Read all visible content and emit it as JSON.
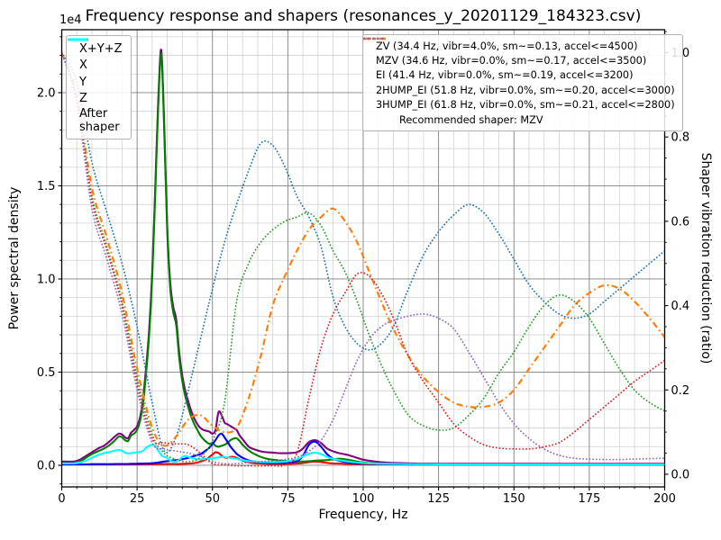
{
  "title": "Frequency response and shapers (resonances_y_20201129_184323.csv)",
  "axes": {
    "x": {
      "label": "Frequency, Hz",
      "min": 0,
      "max": 200,
      "major_ticks": [
        0,
        25,
        50,
        75,
        100,
        125,
        150,
        175,
        200
      ],
      "minor_step": 5
    },
    "y_left": {
      "label": "Power spectral density",
      "offset_label": "1e4",
      "major_ticks": [
        0.0,
        0.5,
        1.0,
        1.5,
        2.0
      ],
      "minor_step": 0.1,
      "lim": [
        -0.116,
        2.338
      ]
    },
    "y_right": {
      "label": "Shaper vibration reduction (ratio)",
      "major_ticks": [
        0.0,
        0.2,
        0.4,
        0.6,
        0.8,
        1.0
      ],
      "minor_step": 0.05,
      "lim": [
        -0.03,
        1.0545
      ]
    }
  },
  "colors": {
    "xyz": "#800080",
    "x": "#ff0000",
    "y": "#008000",
    "z": "#0000ff",
    "after": "#00ffff",
    "zv": "#1f77b4",
    "mzv": "#ff7f0e",
    "ei": "#2ca02c",
    "hump2": "#d62728",
    "hump3": "#9467bd",
    "grid_major": "#808080",
    "grid_minor": "#d3d3d3",
    "spine": "#000000"
  },
  "legend_left": {
    "items": [
      {
        "label": "X+Y+Z",
        "color": "#800080",
        "style": "solid"
      },
      {
        "label": "X",
        "color": "#ff0000",
        "style": "solid"
      },
      {
        "label": "Y",
        "color": "#008000",
        "style": "solid"
      },
      {
        "label": "Z",
        "color": "#0000ff",
        "style": "solid"
      },
      {
        "label": "After\nshaper",
        "color": "#00ffff",
        "style": "solid"
      }
    ]
  },
  "legend_right": {
    "items": [
      {
        "label": "ZV (34.4 Hz, vibr=4.0%, sm~=0.13, accel<=4500)",
        "color": "#1f77b4",
        "style": "dotted"
      },
      {
        "label": "MZV (34.6 Hz, vibr=0.0%, sm~=0.17, accel<=3500)",
        "color": "#ff7f0e",
        "style": "dashdot"
      },
      {
        "label": "EI (41.4 Hz, vibr=0.0%, sm~=0.19, accel<=3200)",
        "color": "#2ca02c",
        "style": "dotted"
      },
      {
        "label": "2HUMP_EI (51.8 Hz, vibr=0.0%, sm~=0.20, accel<=3000)",
        "color": "#d62728",
        "style": "dotted"
      },
      {
        "label": "3HUMP_EI (61.8 Hz, vibr=0.0%, sm~=0.21, accel<=2800)",
        "color": "#9467bd",
        "style": "dotted"
      }
    ],
    "note": "Recommended shaper: MZV"
  },
  "chart_data": {
    "type": "line",
    "title": "Frequency response and shapers (resonances_y_20201129_184323.csv)",
    "xlabel": "Frequency, Hz",
    "ylabel_left": "Power spectral density (1e4)",
    "ylabel_right": "Shaper vibration reduction (ratio)",
    "xlim": [
      0,
      200
    ],
    "ylim_left": [
      -0.116,
      2.338
    ],
    "ylim_right": [
      -0.03,
      1.0545
    ],
    "grid": "both",
    "psd_x": [
      0,
      4,
      6,
      8,
      10,
      12,
      14,
      16,
      18,
      19,
      20,
      21,
      22,
      23,
      24,
      25,
      26,
      27,
      28,
      29,
      30,
      31,
      32,
      33,
      34,
      35,
      36,
      37,
      38,
      39,
      40,
      41,
      42,
      43,
      44,
      45,
      46,
      47,
      48,
      49,
      50,
      51,
      52,
      53,
      54,
      55,
      56,
      57,
      58,
      59,
      60,
      62,
      64,
      66,
      68,
      70,
      72,
      75,
      78,
      80,
      82,
      84,
      86,
      88,
      90,
      92,
      95,
      98,
      100,
      104,
      108,
      112,
      116,
      120,
      130,
      140,
      160,
      180,
      200
    ],
    "series_psd": [
      {
        "name": "X+Y+Z",
        "key": "xyz",
        "axis": "left",
        "style": "solid",
        "y": [
          0.02,
          0.02,
          0.03,
          0.05,
          0.07,
          0.09,
          0.105,
          0.13,
          0.16,
          0.17,
          0.165,
          0.15,
          0.145,
          0.175,
          0.19,
          0.21,
          0.26,
          0.36,
          0.53,
          0.73,
          1.03,
          1.48,
          1.95,
          2.23,
          1.83,
          1.28,
          0.98,
          0.85,
          0.78,
          0.6,
          0.48,
          0.4,
          0.34,
          0.29,
          0.25,
          0.22,
          0.2,
          0.19,
          0.185,
          0.18,
          0.17,
          0.19,
          0.285,
          0.27,
          0.23,
          0.22,
          0.21,
          0.2,
          0.19,
          0.16,
          0.14,
          0.1,
          0.085,
          0.075,
          0.07,
          0.068,
          0.065,
          0.065,
          0.07,
          0.09,
          0.125,
          0.135,
          0.12,
          0.09,
          0.075,
          0.065,
          0.055,
          0.04,
          0.03,
          0.02,
          0.014,
          0.012,
          0.01,
          0.009,
          0.008,
          0.008,
          0.008,
          0.008,
          0.008
        ]
      },
      {
        "name": "X",
        "key": "x",
        "axis": "left",
        "style": "solid",
        "y": [
          0.005,
          0.005,
          0.005,
          0.005,
          0.005,
          0.005,
          0.005,
          0.005,
          0.005,
          0.005,
          0.005,
          0.005,
          0.005,
          0.005,
          0.005,
          0.005,
          0.005,
          0.006,
          0.006,
          0.006,
          0.006,
          0.006,
          0.007,
          0.007,
          0.007,
          0.007,
          0.007,
          0.007,
          0.007,
          0.007,
          0.008,
          0.008,
          0.009,
          0.01,
          0.012,
          0.015,
          0.02,
          0.025,
          0.032,
          0.045,
          0.058,
          0.07,
          0.066,
          0.052,
          0.042,
          0.04,
          0.045,
          0.045,
          0.04,
          0.032,
          0.025,
          0.016,
          0.011,
          0.009,
          0.008,
          0.007,
          0.007,
          0.007,
          0.009,
          0.012,
          0.017,
          0.02,
          0.018,
          0.013,
          0.01,
          0.009,
          0.007,
          0.006,
          0.006,
          0.005,
          0.005,
          0.005,
          0.004,
          0.004,
          0.004,
          0.004,
          0.004,
          0.004,
          0.004
        ]
      },
      {
        "name": "Y",
        "key": "y",
        "axis": "left",
        "style": "solid",
        "y": [
          0.01,
          0.01,
          0.02,
          0.04,
          0.06,
          0.075,
          0.09,
          0.11,
          0.14,
          0.155,
          0.15,
          0.135,
          0.13,
          0.16,
          0.17,
          0.19,
          0.24,
          0.33,
          0.5,
          0.7,
          1.0,
          1.45,
          1.92,
          2.21,
          1.8,
          1.25,
          0.95,
          0.82,
          0.75,
          0.57,
          0.45,
          0.37,
          0.31,
          0.26,
          0.22,
          0.19,
          0.16,
          0.14,
          0.125,
          0.115,
          0.12,
          0.105,
          0.1,
          0.105,
          0.11,
          0.12,
          0.135,
          0.143,
          0.145,
          0.13,
          0.11,
          0.08,
          0.06,
          0.045,
          0.035,
          0.03,
          0.026,
          0.022,
          0.02,
          0.02,
          0.022,
          0.025,
          0.026,
          0.028,
          0.032,
          0.035,
          0.03,
          0.02,
          0.015,
          0.01,
          0.007,
          0.006,
          0.005,
          0.005,
          0.004,
          0.004,
          0.004,
          0.004,
          0.004
        ]
      },
      {
        "name": "Z",
        "key": "z",
        "axis": "left",
        "style": "solid",
        "y": [
          0.005,
          0.005,
          0.005,
          0.005,
          0.006,
          0.006,
          0.006,
          0.006,
          0.007,
          0.007,
          0.007,
          0.007,
          0.007,
          0.008,
          0.008,
          0.008,
          0.009,
          0.009,
          0.01,
          0.01,
          0.011,
          0.013,
          0.015,
          0.018,
          0.02,
          0.022,
          0.024,
          0.026,
          0.028,
          0.03,
          0.033,
          0.036,
          0.04,
          0.045,
          0.05,
          0.055,
          0.06,
          0.07,
          0.082,
          0.095,
          0.115,
          0.135,
          0.16,
          0.17,
          0.15,
          0.125,
          0.1,
          0.08,
          0.062,
          0.05,
          0.04,
          0.026,
          0.02,
          0.016,
          0.013,
          0.012,
          0.012,
          0.014,
          0.022,
          0.05,
          0.11,
          0.127,
          0.1,
          0.06,
          0.035,
          0.025,
          0.015,
          0.01,
          0.009,
          0.007,
          0.006,
          0.006,
          0.005,
          0.005,
          0.005,
          0.005,
          0.005,
          0.005,
          0.005
        ]
      },
      {
        "name": "After shaper",
        "key": "after",
        "axis": "left",
        "style": "solid",
        "y": [
          0.01,
          0.01,
          0.015,
          0.025,
          0.04,
          0.055,
          0.065,
          0.072,
          0.08,
          0.082,
          0.078,
          0.068,
          0.063,
          0.065,
          0.068,
          0.07,
          0.072,
          0.078,
          0.095,
          0.105,
          0.11,
          0.105,
          0.08,
          0.055,
          0.045,
          0.04,
          0.025,
          0.02,
          0.02,
          0.03,
          0.045,
          0.05,
          0.045,
          0.04,
          0.035,
          0.033,
          0.032,
          0.033,
          0.035,
          0.035,
          0.038,
          0.04,
          0.042,
          0.045,
          0.045,
          0.042,
          0.04,
          0.038,
          0.035,
          0.03,
          0.028,
          0.022,
          0.02,
          0.018,
          0.017,
          0.017,
          0.018,
          0.022,
          0.032,
          0.048,
          0.062,
          0.068,
          0.06,
          0.045,
          0.035,
          0.028,
          0.02,
          0.015,
          0.012,
          0.009,
          0.008,
          0.007,
          0.006,
          0.006,
          0.005,
          0.005,
          0.005,
          0.005,
          0.005
        ]
      }
    ],
    "shaper_x": [
      0,
      5,
      10,
      15,
      20,
      25,
      30,
      34,
      38,
      42,
      46,
      50,
      54,
      58,
      62,
      66,
      70,
      74,
      78,
      82,
      86,
      90,
      94,
      98,
      102,
      106,
      110,
      115,
      120,
      125,
      130,
      135,
      140,
      145,
      150,
      155,
      160,
      165,
      170,
      175,
      180,
      185,
      190,
      195,
      200
    ],
    "series_shapers": [
      {
        "name": "ZV",
        "key": "zv",
        "axis": "right",
        "style": "dotted",
        "y": [
          1.0,
          0.93,
          0.74,
          0.62,
          0.5,
          0.35,
          0.17,
          0.055,
          0.09,
          0.2,
          0.32,
          0.44,
          0.55,
          0.64,
          0.72,
          0.785,
          0.78,
          0.73,
          0.66,
          0.61,
          0.54,
          0.42,
          0.35,
          0.31,
          0.295,
          0.31,
          0.35,
          0.44,
          0.52,
          0.575,
          0.615,
          0.64,
          0.62,
          0.57,
          0.51,
          0.45,
          0.41,
          0.38,
          0.37,
          0.38,
          0.41,
          0.44,
          0.47,
          0.5,
          0.53
        ]
      },
      {
        "name": "MZV",
        "key": "mzv",
        "axis": "right",
        "style": "dashdot",
        "y": [
          1.0,
          0.9,
          0.68,
          0.56,
          0.43,
          0.25,
          0.11,
          0.068,
          0.09,
          0.13,
          0.14,
          0.115,
          0.1,
          0.11,
          0.18,
          0.28,
          0.4,
          0.47,
          0.53,
          0.58,
          0.61,
          0.63,
          0.6,
          0.55,
          0.48,
          0.41,
          0.345,
          0.28,
          0.23,
          0.195,
          0.17,
          0.16,
          0.16,
          0.17,
          0.2,
          0.25,
          0.3,
          0.35,
          0.4,
          0.43,
          0.448,
          0.44,
          0.41,
          0.37,
          0.325
        ]
      },
      {
        "name": "EI",
        "key": "ei",
        "axis": "right",
        "style": "dotted",
        "y": [
          1.0,
          0.89,
          0.66,
          0.54,
          0.41,
          0.23,
          0.095,
          0.05,
          0.035,
          0.03,
          0.04,
          0.08,
          0.17,
          0.41,
          0.5,
          0.55,
          0.58,
          0.6,
          0.61,
          0.62,
          0.59,
          0.53,
          0.48,
          0.41,
          0.33,
          0.26,
          0.2,
          0.14,
          0.115,
          0.105,
          0.11,
          0.14,
          0.18,
          0.24,
          0.29,
          0.35,
          0.4,
          0.425,
          0.41,
          0.37,
          0.31,
          0.25,
          0.2,
          0.17,
          0.15
        ]
      },
      {
        "name": "2HUMP_EI",
        "key": "hump2",
        "axis": "right",
        "style": "dotted",
        "y": [
          1.0,
          0.885,
          0.65,
          0.53,
          0.4,
          0.215,
          0.085,
          0.075,
          0.072,
          0.07,
          0.05,
          0.025,
          0.022,
          0.02,
          0.02,
          0.02,
          0.02,
          0.022,
          0.05,
          0.18,
          0.3,
          0.38,
          0.43,
          0.475,
          0.47,
          0.43,
          0.37,
          0.28,
          0.22,
          0.17,
          0.12,
          0.09,
          0.07,
          0.062,
          0.06,
          0.06,
          0.065,
          0.075,
          0.1,
          0.13,
          0.16,
          0.19,
          0.22,
          0.245,
          0.27
        ]
      },
      {
        "name": "3HUMP_EI",
        "key": "hump3",
        "axis": "right",
        "style": "dotted",
        "y": [
          1.0,
          0.88,
          0.63,
          0.51,
          0.38,
          0.2,
          0.075,
          0.06,
          0.055,
          0.05,
          0.042,
          0.03,
          0.025,
          0.025,
          0.028,
          0.03,
          0.032,
          0.035,
          0.04,
          0.055,
          0.08,
          0.13,
          0.2,
          0.27,
          0.32,
          0.35,
          0.365,
          0.375,
          0.38,
          0.37,
          0.345,
          0.29,
          0.23,
          0.17,
          0.12,
          0.085,
          0.06,
          0.045,
          0.038,
          0.036,
          0.035,
          0.035,
          0.036,
          0.037,
          0.038
        ]
      }
    ],
    "recommended_shaper": "MZV"
  }
}
